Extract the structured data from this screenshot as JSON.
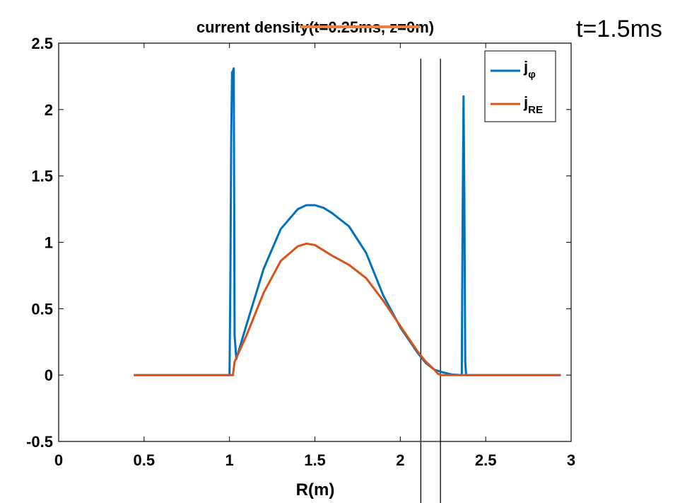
{
  "chart_data": {
    "type": "line",
    "title": "current density(t=0.25ms, z=0m)",
    "annotation": "t=1.5ms",
    "xlabel": "R(m)",
    "ylabel": "",
    "xlim": [
      0,
      3
    ],
    "ylim": [
      -0.5,
      2.5
    ],
    "xticks": [
      0,
      0.5,
      1,
      1.5,
      2,
      2.5,
      3
    ],
    "xtick_labels": [
      "0",
      "0.5",
      "1",
      "1.5",
      "2",
      "2.5",
      "3"
    ],
    "yticks": [
      -0.5,
      0,
      0.5,
      1,
      1.5,
      2,
      2.5
    ],
    "ytick_labels": [
      "-0.5",
      "0",
      "0.5",
      "1",
      "1.5",
      "2",
      "2.5"
    ],
    "legend_position": "top-right",
    "grid": false,
    "vertical_lines_x": [
      2.12,
      2.235
    ],
    "series": [
      {
        "name": "j",
        "subscript": "φ",
        "color": "#0072BD",
        "x": [
          0.44,
          1.0,
          1.005,
          1.01,
          1.015,
          1.02,
          1.025,
          1.03,
          1.04,
          1.1,
          1.2,
          1.3,
          1.4,
          1.45,
          1.5,
          1.55,
          1.6,
          1.7,
          1.8,
          1.9,
          2.0,
          2.1,
          2.15,
          2.2,
          2.25,
          2.3,
          2.36,
          2.365,
          2.37,
          2.375,
          2.38,
          2.385,
          2.4,
          2.94
        ],
        "y": [
          0,
          0,
          0.7,
          1.8,
          2.28,
          2.29,
          2.31,
          0.3,
          0.12,
          0.38,
          0.8,
          1.1,
          1.25,
          1.28,
          1.28,
          1.26,
          1.22,
          1.12,
          0.92,
          0.6,
          0.36,
          0.17,
          0.09,
          0.04,
          0.02,
          0.005,
          0,
          1.2,
          2.1,
          1.3,
          0.1,
          0,
          0,
          0
        ]
      },
      {
        "name": "j",
        "subscript": "RE",
        "color": "#D95319",
        "x": [
          0.44,
          1.02,
          1.03,
          1.1,
          1.2,
          1.3,
          1.4,
          1.45,
          1.5,
          1.55,
          1.6,
          1.7,
          1.8,
          1.9,
          2.0,
          2.1,
          2.15,
          2.2,
          2.22,
          2.24,
          2.94
        ],
        "y": [
          0,
          0,
          0.1,
          0.3,
          0.62,
          0.86,
          0.97,
          0.99,
          0.98,
          0.94,
          0.9,
          0.83,
          0.73,
          0.56,
          0.37,
          0.18,
          0.1,
          0.04,
          0.01,
          0,
          0
        ]
      }
    ]
  }
}
